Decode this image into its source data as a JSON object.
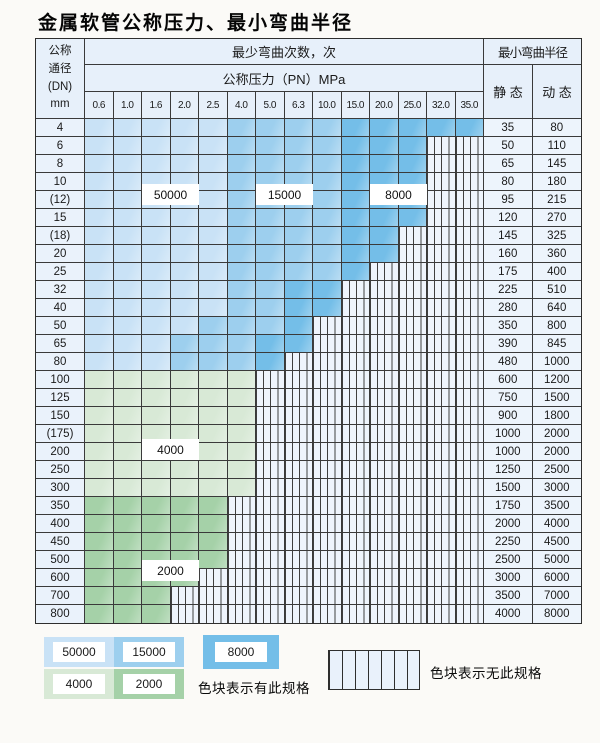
{
  "title": "金属软管公称压力、最小弯曲半径",
  "table_headers": {
    "corner": [
      "公称",
      "通径",
      "(DN)",
      "mm"
    ],
    "bend_cycles": "最少弯曲次数，次",
    "pressure": "公称压力（PN）MPa",
    "radius": "最小弯曲半径",
    "static": "静 态",
    "dynamic": "动 态"
  },
  "chart_data": {
    "type": "table",
    "title": "金属软管公称压力、最小弯曲半径",
    "x_columns_pn_mpa": [
      "0.6",
      "1.0",
      "1.6",
      "2.0",
      "2.5",
      "4.0",
      "5.0",
      "6.3",
      "10.0",
      "15.0",
      "20.0",
      "25.0",
      "32.0",
      "35.0"
    ],
    "cycle_colors": {
      "50000": "#c9e2f6",
      "15000": "#9dcfee",
      "8000": "#74bee8",
      "4000": "#d8e9d6",
      "2000": "#a5d1a8"
    },
    "no_spec_hatch": "vertical-stripes",
    "region_labels": [
      {
        "text": "50000"
      },
      {
        "text": "15000"
      },
      {
        "text": "8000"
      },
      {
        "text": "4000"
      },
      {
        "text": "2000"
      }
    ],
    "rows": [
      {
        "dn": "4",
        "bands": [
          [
            "50000",
            5
          ],
          [
            "15000",
            4
          ],
          [
            "8000",
            5
          ]
        ],
        "static": "35",
        "dynamic": "80"
      },
      {
        "dn": "6",
        "bands": [
          [
            "50000",
            5
          ],
          [
            "15000",
            4
          ],
          [
            "8000",
            3
          ]
        ],
        "static": "50",
        "dynamic": "110"
      },
      {
        "dn": "8",
        "bands": [
          [
            "50000",
            5
          ],
          [
            "15000",
            4
          ],
          [
            "8000",
            3
          ]
        ],
        "static": "65",
        "dynamic": "145"
      },
      {
        "dn": "10",
        "bands": [
          [
            "50000",
            5
          ],
          [
            "15000",
            4
          ],
          [
            "8000",
            3
          ]
        ],
        "static": "80",
        "dynamic": "180"
      },
      {
        "dn": "(12)",
        "bands": [
          [
            "50000",
            5
          ],
          [
            "15000",
            4
          ],
          [
            "8000",
            3
          ]
        ],
        "static": "95",
        "dynamic": "215"
      },
      {
        "dn": "15",
        "bands": [
          [
            "50000",
            5
          ],
          [
            "15000",
            4
          ],
          [
            "8000",
            3
          ]
        ],
        "static": "120",
        "dynamic": "270"
      },
      {
        "dn": "(18)",
        "bands": [
          [
            "50000",
            5
          ],
          [
            "15000",
            4
          ],
          [
            "8000",
            2
          ]
        ],
        "static": "145",
        "dynamic": "325"
      },
      {
        "dn": "20",
        "bands": [
          [
            "50000",
            5
          ],
          [
            "15000",
            4
          ],
          [
            "8000",
            2
          ]
        ],
        "static": "160",
        "dynamic": "360"
      },
      {
        "dn": "25",
        "bands": [
          [
            "50000",
            5
          ],
          [
            "15000",
            4
          ],
          [
            "8000",
            1
          ]
        ],
        "static": "175",
        "dynamic": "400"
      },
      {
        "dn": "32",
        "bands": [
          [
            "50000",
            5
          ],
          [
            "15000",
            2
          ],
          [
            "8000",
            2
          ]
        ],
        "static": "225",
        "dynamic": "510"
      },
      {
        "dn": "40",
        "bands": [
          [
            "50000",
            5
          ],
          [
            "15000",
            2
          ],
          [
            "8000",
            2
          ]
        ],
        "static": "280",
        "dynamic": "640"
      },
      {
        "dn": "50",
        "bands": [
          [
            "50000",
            4
          ],
          [
            "15000",
            3
          ],
          [
            "8000",
            1
          ]
        ],
        "static": "350",
        "dynamic": "800"
      },
      {
        "dn": "65",
        "bands": [
          [
            "50000",
            3
          ],
          [
            "15000",
            3
          ],
          [
            "8000",
            2
          ]
        ],
        "static": "390",
        "dynamic": "845"
      },
      {
        "dn": "80",
        "bands": [
          [
            "50000",
            3
          ],
          [
            "15000",
            3
          ],
          [
            "8000",
            1
          ]
        ],
        "static": "480",
        "dynamic": "1000"
      },
      {
        "dn": "100",
        "bands": [
          [
            "4000",
            6
          ]
        ],
        "static": "600",
        "dynamic": "1200"
      },
      {
        "dn": "125",
        "bands": [
          [
            "4000",
            6
          ]
        ],
        "static": "750",
        "dynamic": "1500"
      },
      {
        "dn": "150",
        "bands": [
          [
            "4000",
            6
          ]
        ],
        "static": "900",
        "dynamic": "1800"
      },
      {
        "dn": "(175)",
        "bands": [
          [
            "4000",
            6
          ]
        ],
        "static": "1000",
        "dynamic": "2000"
      },
      {
        "dn": "200",
        "bands": [
          [
            "4000",
            6
          ]
        ],
        "static": "1000",
        "dynamic": "2000"
      },
      {
        "dn": "250",
        "bands": [
          [
            "4000",
            6
          ]
        ],
        "static": "1250",
        "dynamic": "2500"
      },
      {
        "dn": "300",
        "bands": [
          [
            "4000",
            6
          ]
        ],
        "static": "1500",
        "dynamic": "3000"
      },
      {
        "dn": "350",
        "bands": [
          [
            "2000",
            5
          ]
        ],
        "static": "1750",
        "dynamic": "3500"
      },
      {
        "dn": "400",
        "bands": [
          [
            "2000",
            5
          ]
        ],
        "static": "2000",
        "dynamic": "4000"
      },
      {
        "dn": "450",
        "bands": [
          [
            "2000",
            5
          ]
        ],
        "static": "2250",
        "dynamic": "4500"
      },
      {
        "dn": "500",
        "bands": [
          [
            "2000",
            5
          ]
        ],
        "static": "2500",
        "dynamic": "5000"
      },
      {
        "dn": "600",
        "bands": [
          [
            "2000",
            4
          ]
        ],
        "static": "3000",
        "dynamic": "6000"
      },
      {
        "dn": "700",
        "bands": [
          [
            "2000",
            3
          ]
        ],
        "static": "3500",
        "dynamic": "7000"
      },
      {
        "dn": "800",
        "bands": [
          [
            "2000",
            3
          ]
        ],
        "static": "4000",
        "dynamic": "8000"
      }
    ]
  },
  "legend": {
    "swatches": [
      {
        "label": "50000",
        "cycles": "50000"
      },
      {
        "label": "15000",
        "cycles": "15000"
      },
      {
        "label": "8000",
        "cycles": "8000"
      },
      {
        "label": "4000",
        "cycles": "4000"
      },
      {
        "label": "2000",
        "cycles": "2000"
      }
    ],
    "has_spec": "色块表示有此规格",
    "no_spec": "色块表示无此规格"
  }
}
